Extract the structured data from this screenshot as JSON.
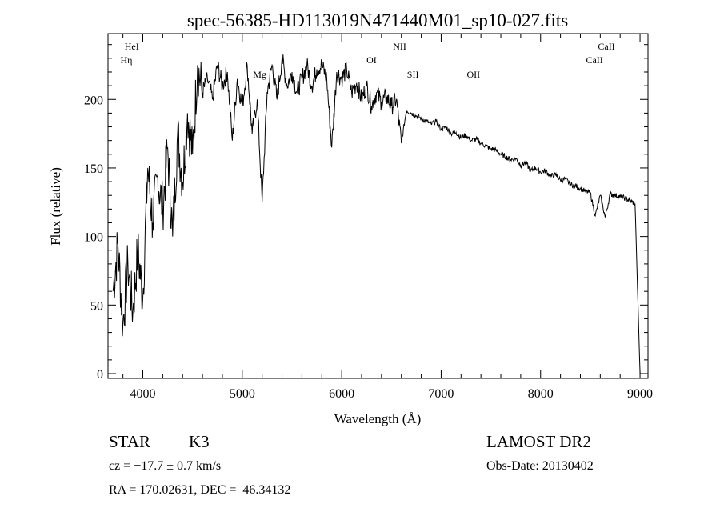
{
  "chart_data": {
    "type": "line",
    "title": "spec-56385-HD113019N471440M01_sp10-027.fits",
    "xlabel": "Wavelength (Å)",
    "ylabel": "Flux (relative)",
    "xlim": [
      3650,
      9080
    ],
    "ylim": [
      -3.5,
      248
    ],
    "xticks": [
      4000,
      5000,
      6000,
      7000,
      8000,
      9000
    ],
    "yticks": [
      0,
      50,
      100,
      150,
      200
    ],
    "grid": false,
    "line_color": "#000000",
    "marker_color": "#000000",
    "series": [
      {
        "name": "spectrum",
        "x_start": 3700,
        "x_step": 50,
        "values": [
          60,
          95,
          35,
          80,
          45,
          90,
          55,
          150,
          110,
          145,
          120,
          165,
          100,
          175,
          140,
          190,
          160,
          225,
          205,
          215,
          200,
          225,
          210,
          220,
          170,
          215,
          195,
          225,
          175,
          200,
          125,
          205,
          225,
          200,
          230,
          210,
          220,
          205,
          215,
          225,
          210,
          222,
          225,
          215,
          165,
          220,
          215,
          222,
          205,
          212,
          200,
          210,
          195,
          205,
          198,
          202,
          195,
          200,
          168,
          192,
          190,
          188,
          186,
          184,
          182,
          184,
          178,
          180,
          175,
          176,
          172,
          174,
          170,
          171,
          168,
          166,
          164,
          163,
          160,
          158,
          156,
          157,
          152,
          154,
          148,
          150,
          147,
          148,
          144,
          145,
          141,
          142,
          138,
          137,
          135,
          133,
          132,
          115,
          130,
          114,
          131,
          130,
          129,
          128,
          126,
          124,
          0
        ]
      }
    ],
    "line_markers": [
      {
        "label": "HeI",
        "wavelength": 3889,
        "row": 0
      },
      {
        "label": "Hη",
        "wavelength": 3835,
        "row": 1
      },
      {
        "label": "Mg",
        "wavelength": 5175,
        "row": 2
      },
      {
        "label": "OI",
        "wavelength": 6300,
        "row": 1
      },
      {
        "label": "NII",
        "wavelength": 6583,
        "row": 0
      },
      {
        "label": "SII",
        "wavelength": 6716,
        "row": 2
      },
      {
        "label": "OII",
        "wavelength": 7325,
        "row": 2
      },
      {
        "label": "CaII",
        "wavelength": 8542,
        "row": 1
      },
      {
        "label": "CaII",
        "wavelength": 8662,
        "row": 0
      }
    ]
  },
  "info": {
    "object_class": "STAR",
    "subclass": "K3",
    "survey": "LAMOST DR2",
    "redshift": "cz = −17.7 ± 0.7 km/s",
    "obs_date": "Obs-Date: 20130402",
    "coords": "RA = 170.02631, DEC =  46.34132"
  }
}
